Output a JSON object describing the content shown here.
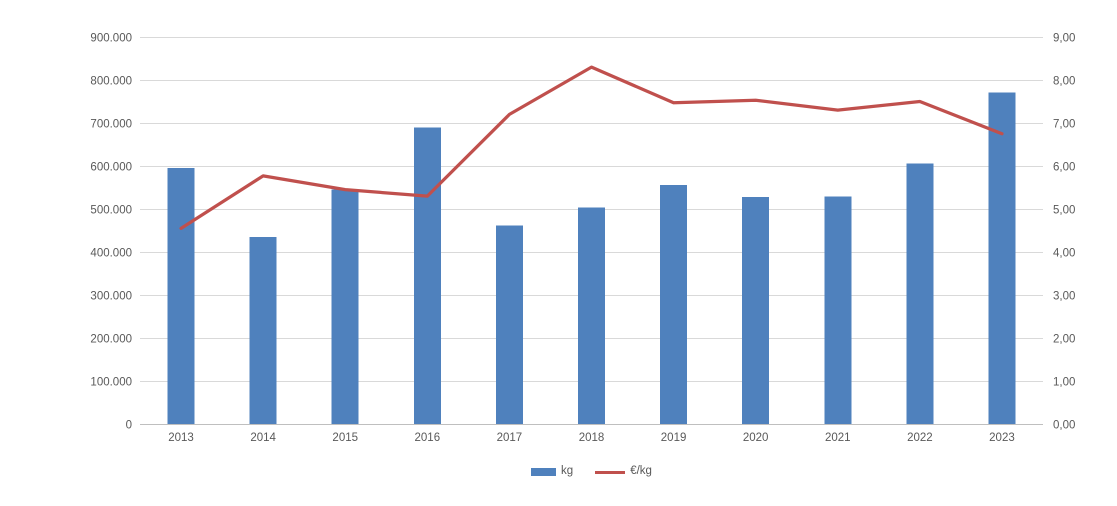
{
  "chart_data": {
    "type": "combo",
    "title": "",
    "categories": [
      "2013",
      "2014",
      "2015",
      "2016",
      "2017",
      "2018",
      "2019",
      "2020",
      "2021",
      "2022",
      "2023"
    ],
    "series": [
      {
        "name": "kg",
        "type": "bar",
        "axis": "left",
        "color": "#4f81bd",
        "values": [
          595000,
          435000,
          545000,
          690000,
          462000,
          503000,
          556000,
          528000,
          529000,
          606000,
          771000
        ]
      },
      {
        "name": "€/kg",
        "type": "line",
        "axis": "right",
        "color": "#c0504d",
        "values": [
          4.55,
          5.77,
          5.45,
          5.3,
          7.2,
          8.3,
          7.47,
          7.53,
          7.3,
          7.5,
          6.75
        ]
      }
    ],
    "left_axis": {
      "min": 0,
      "max": 900000,
      "tick_step": 100000,
      "tick_labels": [
        "0",
        "100.000",
        "200.000",
        "300.000",
        "400.000",
        "500.000",
        "600.000",
        "700.000",
        "800.000",
        "900.000"
      ]
    },
    "right_axis": {
      "min": 0,
      "max": 9,
      "tick_step": 1,
      "tick_labels": [
        "0,00",
        "1,00",
        "2,00",
        "3,00",
        "4,00",
        "5,00",
        "6,00",
        "7,00",
        "8,00",
        "9,00"
      ]
    },
    "legend": {
      "position": "bottom",
      "entries": [
        "kg",
        "€/kg"
      ]
    },
    "grid": true,
    "colors": {
      "gridline": "#d9d9d9",
      "axis_line": "#bfbfbf",
      "label_text": "#595959",
      "background": "#ffffff"
    }
  }
}
